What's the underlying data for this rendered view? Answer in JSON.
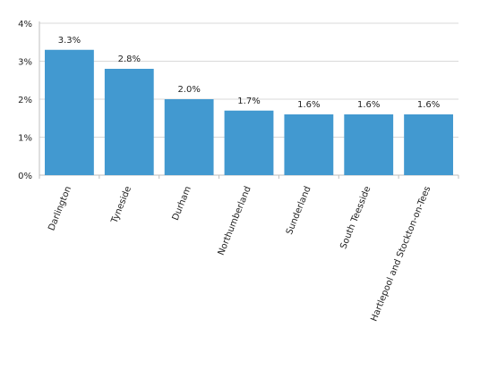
{
  "chart_data": {
    "type": "bar",
    "title": "",
    "xlabel": "",
    "ylabel": "",
    "categories": [
      "Darlington",
      "Tyneside",
      "Durham",
      "Northumberland",
      "Sunderland",
      "South Teesside",
      "Hartlepool and Stockton-on-Tees"
    ],
    "values": [
      3.3,
      2.8,
      2.0,
      1.7,
      1.6,
      1.6,
      1.6
    ],
    "data_labels": [
      "3.3%",
      "2.8%",
      "2.0%",
      "1.7%",
      "1.6%",
      "1.6%",
      "1.6%"
    ],
    "y_ticks": [
      0,
      1,
      2,
      3,
      4
    ],
    "y_tick_labels": [
      "0%",
      "1%",
      "2%",
      "3%",
      "4%"
    ],
    "ylim": [
      0,
      4
    ],
    "grid": true,
    "legend": "none",
    "colors": {
      "bar": "#4299d0",
      "grid": "#d9d9d9",
      "axis": "#bfbfbf"
    }
  }
}
